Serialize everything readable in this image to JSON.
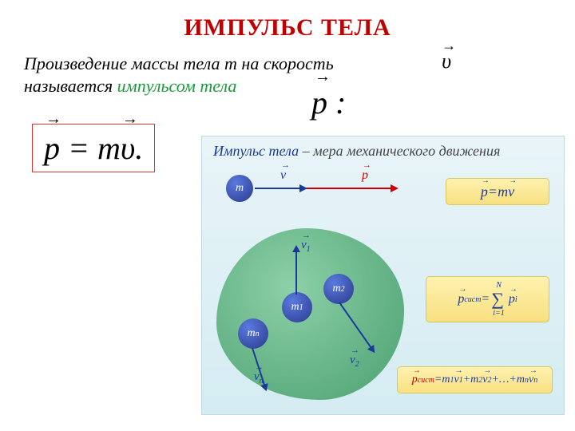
{
  "title": {
    "text": "ИМПУЛЬС  ТЕЛА",
    "color": "#c00000",
    "fontsize": 30
  },
  "definition": {
    "line1_a": "Произведение массы тела  ",
    "m": "m",
    "line1_b": "   на скорость",
    "line2_a": " называется ",
    "highlight": "импульсом тела",
    "highlight_color": "#1a9b3a",
    "fontsize": 22
  },
  "symbols": {
    "v": "υ",
    "p_colon": "p :"
  },
  "main_formula": {
    "p": "p",
    "eq": " = ",
    "m": "m",
    "v": "υ",
    "dot": ".",
    "border_color": "#d33",
    "fontsize": 40
  },
  "panel": {
    "background_top": "#e8f4f8",
    "background_bottom": "#d4ecf2",
    "title_blue": "Импульс тела",
    "title_rest": "  – мера механического движения",
    "title_blue_color": "#1a3a9b",
    "colors": {
      "blue": "#1a3a9b",
      "red": "#c00000"
    }
  },
  "top_diagram": {
    "mass_label": "m",
    "v_label": "v",
    "p_label": "p",
    "v_arrow": {
      "len": 58,
      "color": "#1a3a9b"
    },
    "p_arrow": {
      "len": 172,
      "color": "#c00000"
    }
  },
  "blob": {
    "gradient_from": "#8dd0a8",
    "gradient_to": "#4aa070",
    "masses": [
      {
        "label": "m",
        "sub": "1"
      },
      {
        "label": "m",
        "sub": "2"
      },
      {
        "label": "m",
        "sub": "n"
      }
    ],
    "arrows": [
      {
        "label": "v",
        "sub": "1",
        "angle": -90,
        "len": 55
      },
      {
        "label": "v",
        "sub": "2",
        "angle": 55,
        "len": 70
      },
      {
        "label": "v",
        "sub": "n",
        "angle": 72,
        "len": 50
      }
    ]
  },
  "cards": {
    "card1": {
      "p": "p",
      "eq": " = ",
      "m": "m",
      "v": "v"
    },
    "card2": {
      "p": "p",
      "sub": "сист",
      "eq": "= ",
      "sum": "∑",
      "N": "N",
      "i1": "i=1",
      "pi": "p",
      "isub": "i"
    },
    "card3": {
      "p": "p",
      "sub": "сист",
      "eq": "= ",
      "terms": "m₁v₁+m₂v₂+… +mₙvₙ",
      "m": "m",
      "v": "v",
      "one": "1",
      "two": "2",
      "n": "n",
      "plus": "+",
      "dots": "… "
    }
  }
}
